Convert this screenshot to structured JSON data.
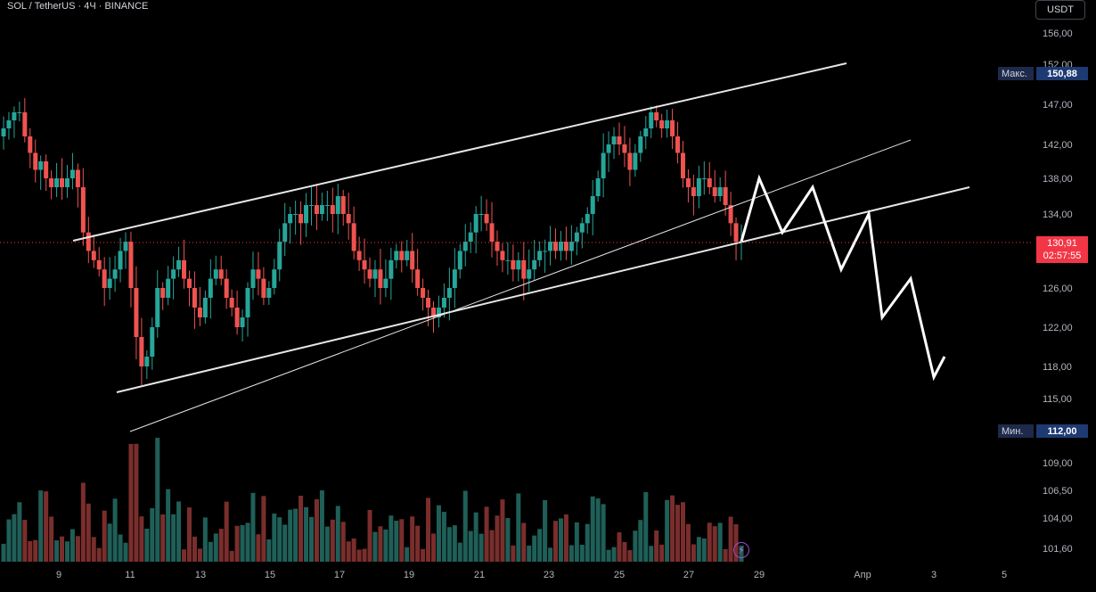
{
  "header": {
    "symbol": "SOL",
    "quote": "TetherUS",
    "interval": "4Ч",
    "exchange": "BINANCE"
  },
  "currency_button": "USDT",
  "max_marker": {
    "label": "Макс.",
    "value": "150,88"
  },
  "min_marker": {
    "label": "Мин.",
    "value": "112,00"
  },
  "last_price": {
    "value": "130,91",
    "countdown": "02:57:55"
  },
  "colors": {
    "up": "#26a69a",
    "down": "#ef5350",
    "line": "#e6e6e6",
    "last": "#f23645"
  },
  "icons": {
    "flash": "lightning-icon"
  },
  "chart_data": {
    "type": "candlestick",
    "price_axis_labels": [
      "156,00",
      "152,00",
      "147,00",
      "142,00",
      "138,00",
      "134,00",
      "126,00",
      "122,00",
      "118,00",
      "115,00",
      "109,00",
      "106,50",
      "104,00",
      "101,60"
    ],
    "time_axis_labels": [
      "9",
      "11",
      "13",
      "15",
      "17",
      "19",
      "21",
      "23",
      "25",
      "27",
      "29",
      "Апр",
      "3",
      "5"
    ],
    "closes": [
      144,
      145,
      146,
      146,
      143,
      141,
      139,
      140,
      138,
      137,
      138,
      137,
      138,
      139,
      137,
      132,
      130,
      129,
      128,
      126,
      127,
      128,
      130,
      131,
      126,
      121,
      118,
      119,
      122,
      126,
      125,
      127,
      128,
      129,
      127,
      126,
      124,
      123,
      125,
      127,
      128,
      127,
      125,
      124,
      122,
      123,
      126,
      128,
      127,
      125,
      126,
      128,
      131,
      133,
      134,
      134,
      133,
      135,
      135,
      134,
      135,
      135,
      134,
      136,
      134,
      133,
      130,
      129,
      128,
      127,
      128,
      126,
      127,
      129,
      130,
      129,
      130,
      128,
      126,
      125,
      124,
      123,
      124,
      125,
      126,
      128,
      130,
      131,
      132,
      134,
      134,
      133,
      131,
      130,
      129,
      129,
      128,
      129,
      127,
      128,
      129,
      130,
      130,
      131,
      130,
      131,
      130,
      131,
      132,
      133,
      134,
      136,
      138,
      141,
      142,
      143,
      142,
      141,
      139,
      141,
      143,
      144,
      146,
      145,
      144,
      145,
      143,
      141,
      138,
      137,
      136,
      138,
      138,
      137,
      136,
      137,
      135,
      133,
      131,
      131
    ],
    "volume_axis_note": "",
    "drawn_lines": [
      {
        "from": [
          "9",
          130.5
        ],
        "to": [
          "28",
          131.5
        ],
        "kind": "channel-bottom"
      },
      {
        "from": [
          "9",
          137
        ],
        "to": [
          "28",
          151
        ],
        "kind": "channel-top"
      },
      {
        "from": [
          "11",
          112
        ],
        "to": [
          "28",
          140
        ],
        "kind": "trend-thin"
      }
    ],
    "projection_path": [
      131,
      138,
      132,
      137,
      128,
      134,
      123,
      127,
      117,
      119
    ]
  }
}
